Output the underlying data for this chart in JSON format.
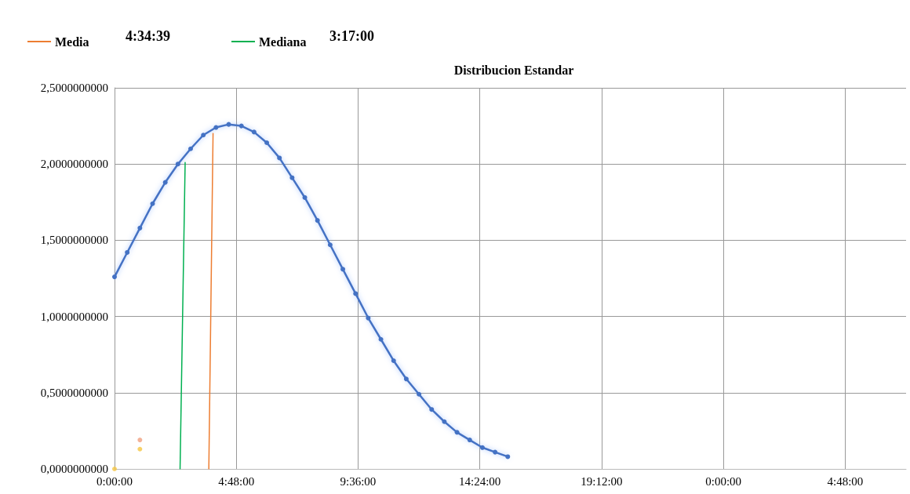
{
  "chart_data": {
    "type": "line",
    "title": "Distribucion Estandar",
    "xlim": [
      "1900-01-01T00:00",
      "1900-01-02T07:12"
    ],
    "xticks": [
      {
        "value": "1900-01-01T00:00",
        "label": "0:00:00"
      },
      {
        "value": "1900-01-01T04:48",
        "label": "4:48:00"
      },
      {
        "value": "1900-01-01T09:36",
        "label": "9:36:00"
      },
      {
        "value": "1900-01-01T14:24",
        "label": "14:24:00"
      },
      {
        "value": "1900-01-01T19:12",
        "label": "19:12:00"
      },
      {
        "value": "1900-01-02T00:00",
        "label": "0:00:00"
      },
      {
        "value": "1900-01-02T04:48",
        "label": "4:48:00"
      }
    ],
    "ylim": [
      0,
      2.5
    ],
    "yticks": [
      {
        "value": 0,
        "label": "0,0000000000"
      },
      {
        "value": 0.5,
        "label": "0,5000000000"
      },
      {
        "value": 1,
        "label": "1,0000000000"
      },
      {
        "value": 1.5,
        "label": "1,5000000000"
      },
      {
        "value": 2,
        "label": "2,0000000000"
      },
      {
        "value": 2.5,
        "label": "2,5000000000"
      }
    ],
    "grid": true,
    "legend": "top left",
    "marker": "circle",
    "line_style": "solid",
    "annotations": [
      "4:34:39",
      "3:17:00"
    ],
    "series": [
      {
        "color": "#4472c4",
        "x": [
          "1900-01-01T00:00",
          "1900-01-01T00:30",
          "1900-01-01T01:00",
          "1900-01-01T01:30",
          "1900-01-01T02:00",
          "1900-01-01T02:30",
          "1900-01-01T03:00",
          "1900-01-01T03:30",
          "1900-01-01T04:00",
          "1900-01-01T04:30",
          "1900-01-01T05:00",
          "1900-01-01T05:30",
          "1900-01-01T06:00",
          "1900-01-01T06:30",
          "1900-01-01T07:00",
          "1900-01-01T07:30",
          "1900-01-01T08:00",
          "1900-01-01T08:30",
          "1900-01-01T09:00",
          "1900-01-01T09:30",
          "1900-01-01T10:00",
          "1900-01-01T10:30",
          "1900-01-01T11:00",
          "1900-01-01T11:30",
          "1900-01-01T12:00",
          "1900-01-01T12:30",
          "1900-01-01T13:00",
          "1900-01-01T13:30",
          "1900-01-01T14:00",
          "1900-01-01T14:30",
          "1900-01-01T15:00",
          "1900-01-01T15:30"
        ],
        "values": [
          1.26,
          1.42,
          1.58,
          1.74,
          1.88,
          2.0,
          2.1,
          2.19,
          2.24,
          2.26,
          2.25,
          2.21,
          2.14,
          2.04,
          1.91,
          1.78,
          1.63,
          1.47,
          1.31,
          1.15,
          0.99,
          0.85,
          0.71,
          0.59,
          0.49,
          0.39,
          0.31,
          0.24,
          0.19,
          0.14,
          0.11,
          0.08
        ]
      },
      {
        "name": "Media",
        "color": "#ed7d31",
        "marker": "none",
        "x": [
          "1900-01-01T03:43",
          "1900-01-01T03:53"
        ],
        "values": [
          0,
          2.2
        ]
      },
      {
        "name": "Mediana",
        "color": "#00b050",
        "marker": "none",
        "x": [
          "1900-01-01T02:35",
          "1900-01-01T02:47"
        ],
        "values": [
          0,
          2.01
        ]
      },
      {
        "type": "scatter",
        "color": "#f5c542",
        "x": [
          "1900-01-01T00:00",
          "1900-01-01T01:00"
        ],
        "values": [
          0,
          0.13
        ]
      },
      {
        "type": "scatter",
        "color": "#f0a080",
        "x": [
          "1900-01-01T01:00"
        ],
        "values": [
          0.19
        ]
      }
    ]
  }
}
